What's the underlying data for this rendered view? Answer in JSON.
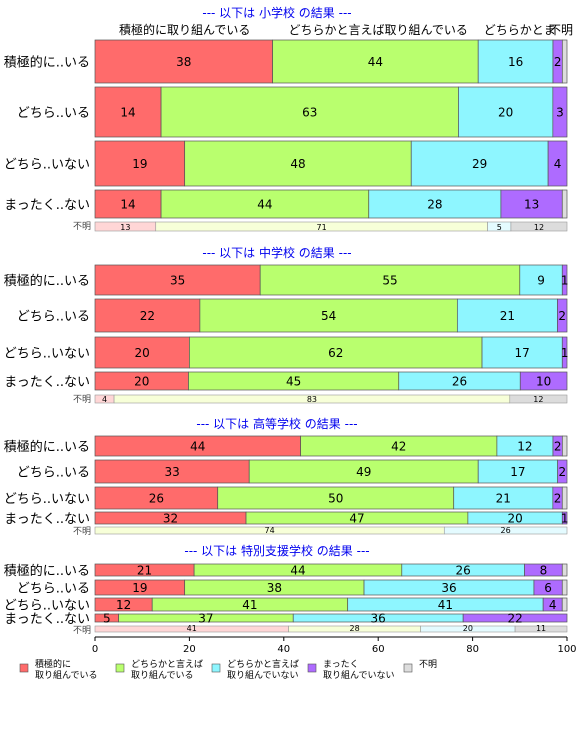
{
  "chart_data": {
    "type": "bar",
    "orientation": "horizontal",
    "stacked": "percent",
    "xlim": [
      0,
      100
    ],
    "xticks": [
      0,
      20,
      40,
      60,
      80,
      100
    ],
    "top_headers": [
      "積極的に取り組んでいる",
      "どちらかと言えば取り組んでいる",
      "どちらかとま",
      "不明"
    ],
    "missing_label": "不明",
    "legend": {
      "placement": "bottom",
      "items": [
        {
          "line1": "積極的に",
          "line2": "取り組んでいる",
          "color": "#ff6b6b"
        },
        {
          "line1": "どちらかと言えば",
          "line2": "取り組んでいる",
          "color": "#b9ff6e"
        },
        {
          "line1": "どちらかと言えば",
          "line2": "取り組んでいない",
          "color": "#8ef6ff"
        },
        {
          "line1": "まったく",
          "line2": "取り組んでいない",
          "color": "#ae6bff"
        },
        {
          "line1": "不明",
          "line2": "",
          "color": "#dddddd"
        }
      ]
    },
    "panels": [
      {
        "title": "--- 以下は 小学校 の結果 ---",
        "categories": [
          "積極的に..いる",
          "どちら..いる",
          "どちら..いない",
          "まったく..ない"
        ],
        "rows": [
          [
            38,
            44,
            16,
            2,
            1
          ],
          [
            14,
            63,
            20,
            3,
            0
          ],
          [
            19,
            48,
            29,
            4,
            0
          ],
          [
            14,
            44,
            28,
            13,
            1
          ]
        ],
        "missing": [
          13,
          71,
          5,
          12
        ]
      },
      {
        "title": "--- 以下は 中学校 の結果 ---",
        "categories": [
          "積極的に..いる",
          "どちら..いる",
          "どちら..いない",
          "まったく..ない"
        ],
        "rows": [
          [
            35,
            55,
            9,
            1,
            0
          ],
          [
            22,
            54,
            21,
            2,
            0
          ],
          [
            20,
            62,
            17,
            1,
            0
          ],
          [
            20,
            45,
            26,
            10,
            0
          ]
        ],
        "missing": [
          4,
          83,
          0,
          12
        ]
      },
      {
        "title": "--- 以下は 高等学校 の結果 ---",
        "categories": [
          "積極的に..いる",
          "どちら..いる",
          "どちら..いない",
          "まったく..ない"
        ],
        "rows": [
          [
            44,
            42,
            12,
            2,
            1
          ],
          [
            33,
            49,
            17,
            2,
            0
          ],
          [
            26,
            50,
            21,
            2,
            1
          ],
          [
            32,
            47,
            20,
            1,
            0
          ]
        ],
        "missing": [
          0,
          74,
          26,
          0
        ]
      },
      {
        "title": "--- 以下は 特別支援学校 の結果 ---",
        "categories": [
          "積極的に..いる",
          "どちら..いる",
          "どちら..いない",
          "まったく..ない"
        ],
        "rows": [
          [
            21,
            44,
            26,
            8,
            1
          ],
          [
            19,
            38,
            36,
            6,
            1
          ],
          [
            12,
            41,
            41,
            4,
            1
          ],
          [
            5,
            37,
            36,
            22,
            0
          ]
        ],
        "missing": [
          41,
          28,
          20,
          11
        ]
      }
    ]
  }
}
